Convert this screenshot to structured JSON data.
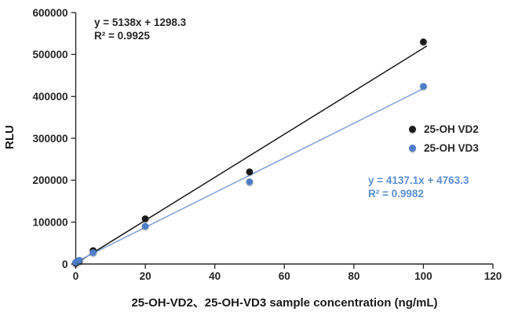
{
  "chart_data": {
    "type": "scatter",
    "title": "",
    "xlabel": "25-OH-VD2、25-OH-VD3 sample concentration (ng/mL)",
    "ylabel": "RLU",
    "xlim": [
      0,
      120
    ],
    "ylim": [
      0,
      600000
    ],
    "x_ticks": [
      0,
      20,
      40,
      60,
      80,
      100,
      120
    ],
    "y_ticks": [
      0,
      100000,
      200000,
      300000,
      400000,
      500000,
      600000
    ],
    "grid": false,
    "legend_position": "right-middle",
    "axis_color": "#262626",
    "series": [
      {
        "name": "25-OH VD2",
        "marker_color": "#1a1a1a",
        "line_color": "#1a1a1a",
        "text_color": "#262626",
        "points": [
          [
            0,
            2000
          ],
          [
            1,
            7000
          ],
          [
            5,
            32000
          ],
          [
            20,
            108000
          ],
          [
            50,
            220000
          ],
          [
            100,
            530000
          ]
        ],
        "trendline": {
          "slope": 5138,
          "intercept": 1298.3,
          "equation": "y = 5138x + 1298.3",
          "r_squared": "R² = 0.9925",
          "x_range": [
            0,
            101
          ]
        }
      },
      {
        "name": "25-OH VD3",
        "marker_color": "#4e7ec8",
        "line_color": "#7fa3db",
        "text_color": "#5b8fd4",
        "points": [
          [
            0,
            4000
          ],
          [
            1,
            9000
          ],
          [
            5,
            27000
          ],
          [
            20,
            90000
          ],
          [
            50,
            196000
          ],
          [
            100,
            424000
          ]
        ],
        "trendline": {
          "slope": 4137.1,
          "intercept": 4763.3,
          "equation": "y = 4137.1x + 4763.3",
          "r_squared": "R² = 0.9982",
          "x_range": [
            0,
            101
          ]
        }
      }
    ]
  }
}
